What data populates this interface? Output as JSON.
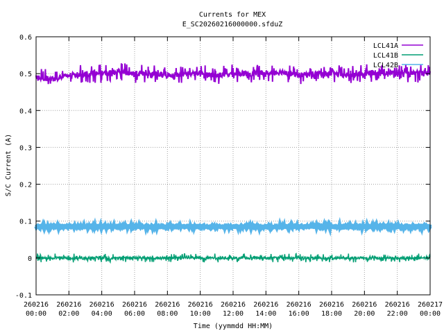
{
  "chart_data": {
    "type": "line",
    "title": "Currents for MEX",
    "subtitle": "E_SC20260216000000.sfduZ",
    "xlabel": "Time (yymmdd HH:MM)",
    "ylabel": "S/C Current (A)",
    "xlim": [
      "2026-02-16 00:00",
      "2026-02-17 00:00"
    ],
    "ylim": [
      -0.1,
      0.6
    ],
    "y_ticks": [
      "-0.1",
      "0",
      "0.1",
      "0.2",
      "0.3",
      "0.4",
      "0.5",
      "0.6"
    ],
    "x_ticks": [
      {
        "date": "260216",
        "time": "00:00"
      },
      {
        "date": "260216",
        "time": "02:00"
      },
      {
        "date": "260216",
        "time": "04:00"
      },
      {
        "date": "260216",
        "time": "06:00"
      },
      {
        "date": "260216",
        "time": "08:00"
      },
      {
        "date": "260216",
        "time": "10:00"
      },
      {
        "date": "260216",
        "time": "12:00"
      },
      {
        "date": "260216",
        "time": "14:00"
      },
      {
        "date": "260216",
        "time": "16:00"
      },
      {
        "date": "260216",
        "time": "18:00"
      },
      {
        "date": "260216",
        "time": "20:00"
      },
      {
        "date": "260216",
        "time": "22:00"
      },
      {
        "date": "260217",
        "time": "00:00"
      }
    ],
    "grid": true,
    "legend_position": "top-right",
    "series": [
      {
        "name": "LCL41A",
        "color": "#9400d3",
        "nominal": 0.495,
        "x": [
          "00:00",
          "01:00",
          "02:00",
          "03:00",
          "04:00",
          "05:00",
          "06:00",
          "07:00",
          "08:00",
          "09:00",
          "10:00",
          "11:00",
          "12:00",
          "13:00",
          "14:00",
          "15:00",
          "16:00",
          "17:00",
          "18:00",
          "19:00",
          "20:00",
          "21:00",
          "22:00",
          "23:00",
          "24:00"
        ],
        "y": [
          0.49,
          0.485,
          0.495,
          0.5,
          0.5,
          0.505,
          0.5,
          0.5,
          0.495,
          0.5,
          0.5,
          0.495,
          0.5,
          0.5,
          0.5,
          0.505,
          0.495,
          0.5,
          0.5,
          0.495,
          0.5,
          0.505,
          0.5,
          0.5,
          0.5
        ],
        "range": [
          0.475,
          0.525
        ]
      },
      {
        "name": "LCL41B",
        "color": "#009e73",
        "nominal": 0.0,
        "x": [
          "00:00",
          "04:00",
          "08:00",
          "12:00",
          "16:00",
          "20:00",
          "24:00"
        ],
        "y": [
          0.0,
          0.0,
          0.0,
          0.0,
          0.0,
          0.0,
          0.0
        ],
        "range": [
          -0.012,
          0.012
        ]
      },
      {
        "name": "LCL42B",
        "color": "#56b4e9",
        "nominal": 0.085,
        "x": [
          "00:00",
          "04:00",
          "08:00",
          "12:00",
          "16:00",
          "20:00",
          "24:00"
        ],
        "y": [
          0.085,
          0.085,
          0.085,
          0.085,
          0.085,
          0.085,
          0.085
        ],
        "range": [
          0.08,
          0.09
        ]
      }
    ]
  }
}
